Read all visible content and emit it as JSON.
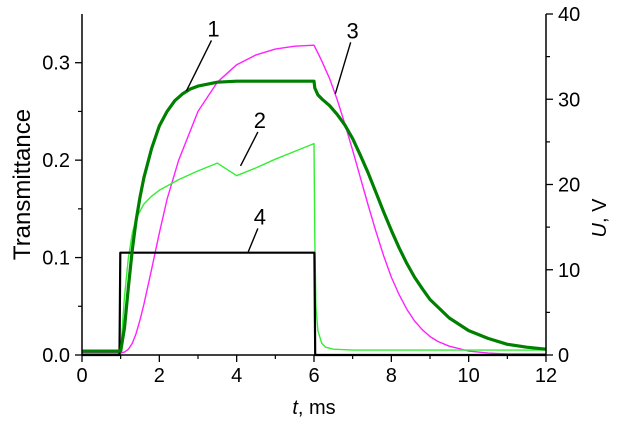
{
  "chart_data": {
    "type": "line",
    "title": "",
    "xlabel": {
      "italic": "t",
      "rest": ", ms"
    },
    "ylabel": "Transmittance",
    "y2label": {
      "italic": "U",
      "rest": ", V"
    },
    "xlim": [
      0,
      12
    ],
    "ylim": [
      0,
      0.35
    ],
    "y2lim": [
      0,
      40
    ],
    "grid": false,
    "x_ticks": [
      0,
      2,
      4,
      6,
      8,
      10,
      12
    ],
    "x_tick_labels": [
      "0",
      "2",
      "4",
      "6",
      "8",
      "10",
      "12"
    ],
    "y_ticks": [
      0.0,
      0.1,
      0.2,
      0.3
    ],
    "y_tick_labels": [
      "0.0",
      "0.1",
      "0.2",
      "0.3"
    ],
    "y2_ticks": [
      0,
      10,
      20,
      30,
      40
    ],
    "y2_tick_labels": [
      "0",
      "10",
      "20",
      "30",
      "40"
    ],
    "series": [
      {
        "label": "1",
        "color": "#008000",
        "axis": "left",
        "x": [
          0,
          0.9,
          1.0,
          1.1,
          1.2,
          1.3,
          1.4,
          1.5,
          1.6,
          1.8,
          2.0,
          2.2,
          2.4,
          2.6,
          2.8,
          3.0,
          3.5,
          4.0,
          5.0,
          6.0,
          6.02,
          6.1,
          6.2,
          6.4,
          6.6,
          6.8,
          7.0,
          7.2,
          7.4,
          7.6,
          7.8,
          8.0,
          8.2,
          8.4,
          8.6,
          8.8,
          9.0,
          9.5,
          10.0,
          10.5,
          11.0,
          11.5,
          12.0
        ],
        "y": [
          0.004,
          0.004,
          0.004,
          0.028,
          0.07,
          0.108,
          0.138,
          0.162,
          0.182,
          0.212,
          0.235,
          0.25,
          0.261,
          0.268,
          0.273,
          0.276,
          0.28,
          0.281,
          0.281,
          0.281,
          0.274,
          0.267,
          0.263,
          0.256,
          0.247,
          0.236,
          0.222,
          0.205,
          0.187,
          0.167,
          0.147,
          0.128,
          0.11,
          0.094,
          0.08,
          0.068,
          0.057,
          0.038,
          0.025,
          0.017,
          0.011,
          0.008,
          0.006
        ]
      },
      {
        "label": "2",
        "color": "#33ee33",
        "axis": "left",
        "x": [
          0,
          0.9,
          1.0,
          1.1,
          1.2,
          1.3,
          1.4,
          1.6,
          1.8,
          2.0,
          2.5,
          3.0,
          3.5,
          4.0,
          4.5,
          5.0,
          5.5,
          6.0,
          6.02,
          6.05,
          6.1,
          6.2,
          6.3,
          6.5,
          7.0,
          8.0,
          10.0,
          12.0
        ],
        "y": [
          0.004,
          0.004,
          0.004,
          0.06,
          0.1,
          0.125,
          0.14,
          0.155,
          0.163,
          0.169,
          0.18,
          0.189,
          0.197,
          0.184,
          0.192,
          0.201,
          0.209,
          0.217,
          0.12,
          0.05,
          0.025,
          0.012,
          0.008,
          0.006,
          0.005,
          0.005,
          0.005,
          0.005
        ]
      },
      {
        "label": "3",
        "color": "#ff22ff",
        "axis": "left",
        "x": [
          0,
          1.0,
          1.1,
          1.2,
          1.3,
          1.4,
          1.5,
          1.6,
          1.8,
          2.0,
          2.2,
          2.5,
          3.0,
          3.5,
          4.0,
          4.5,
          5.0,
          5.5,
          6.0,
          6.1,
          6.2,
          6.4,
          6.6,
          6.8,
          7.0,
          7.2,
          7.4,
          7.6,
          7.8,
          8.0,
          8.2,
          8.4,
          8.6,
          8.8,
          9.0,
          9.2,
          9.5,
          10.0,
          10.5,
          11.0,
          12.0
        ],
        "y": [
          0.002,
          0.002,
          0.003,
          0.006,
          0.012,
          0.022,
          0.036,
          0.052,
          0.088,
          0.125,
          0.16,
          0.2,
          0.25,
          0.28,
          0.298,
          0.308,
          0.314,
          0.317,
          0.318,
          0.31,
          0.302,
          0.284,
          0.262,
          0.237,
          0.21,
          0.182,
          0.154,
          0.127,
          0.102,
          0.08,
          0.062,
          0.047,
          0.035,
          0.026,
          0.019,
          0.014,
          0.009,
          0.004,
          0.002,
          0.001,
          0.001
        ]
      },
      {
        "label": "4",
        "color": "#000000",
        "axis": "right",
        "x": [
          0,
          0.97,
          0.99,
          1.0,
          6.0,
          6.01,
          6.03,
          12.0
        ],
        "y": [
          0,
          0,
          12,
          12,
          12,
          12,
          0,
          0
        ]
      }
    ],
    "annotations": [
      {
        "text": "1",
        "series": "1",
        "x": 3.4,
        "y": 0.327,
        "target_x": 2.7,
        "target_y": 0.271
      },
      {
        "text": "2",
        "series": "2",
        "x": 4.6,
        "y": 0.233,
        "target_x": 4.1,
        "target_y": 0.194
      },
      {
        "text": "3",
        "series": "3",
        "x": 7.0,
        "y": 0.325,
        "target_x": 6.55,
        "target_y": 0.268
      },
      {
        "text": "4",
        "series": "4",
        "x": 4.6,
        "y": 0.134,
        "target_x": 4.3,
        "target_y": 0.106
      }
    ]
  }
}
